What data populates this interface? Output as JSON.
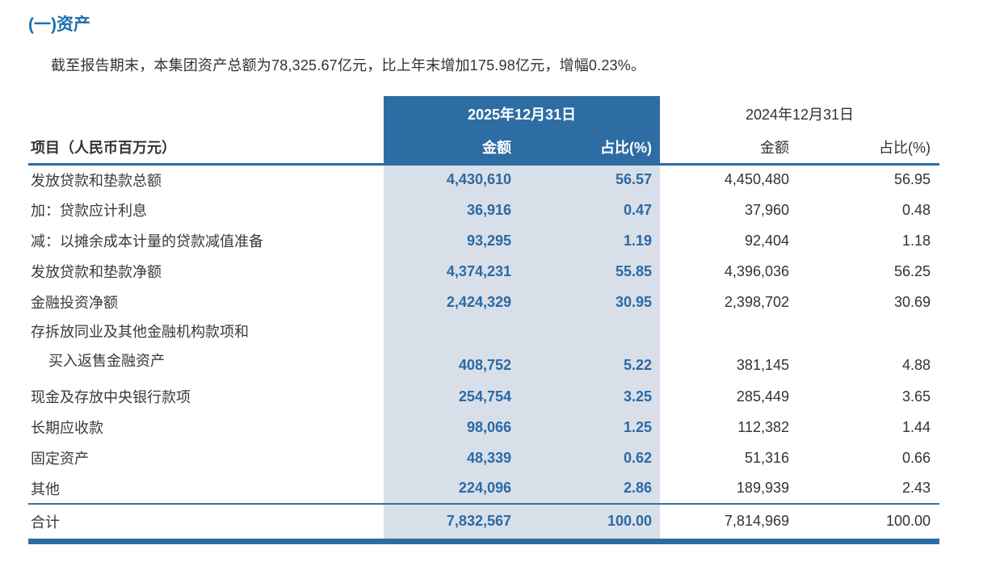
{
  "page": {
    "section_title": "(一)资产",
    "intro_paragraph": "截至报告期末，本集团资产总额为78,325.67亿元，比上年末增加175.98亿元，增幅0.23%。"
  },
  "table": {
    "item_header": "项目（人民币百万元）",
    "col_groups": [
      {
        "period": "2025年12月31日",
        "amount_label": "金额",
        "ratio_label": "占比(%)"
      },
      {
        "period": "2024年12月31日",
        "amount_label": "金额",
        "ratio_label": "占比(%)"
      }
    ],
    "rows": [
      {
        "item": "发放贷款和垫款总额",
        "amount_2025": "4,430,610",
        "ratio_2025": "56.57",
        "amount_2024": "4,450,480",
        "ratio_2024": "56.95"
      },
      {
        "item": "加：贷款应计利息",
        "amount_2025": "36,916",
        "ratio_2025": "0.47",
        "amount_2024": "37,960",
        "ratio_2024": "0.48"
      },
      {
        "item": "减：以摊余成本计量的贷款减值准备",
        "amount_2025": "93,295",
        "ratio_2025": "1.19",
        "amount_2024": "92,404",
        "ratio_2024": "1.18"
      },
      {
        "item": "发放贷款和垫款净额",
        "amount_2025": "4,374,231",
        "ratio_2025": "55.85",
        "amount_2024": "4,396,036",
        "ratio_2024": "56.25"
      },
      {
        "item": "金融投资净额",
        "amount_2025": "2,424,329",
        "ratio_2025": "30.95",
        "amount_2024": "2,398,702",
        "ratio_2024": "30.69"
      },
      {
        "item": "存拆放同业及其他金融机构款项和",
        "item2": "买入返售金融资产",
        "amount_2025": "408,752",
        "ratio_2025": "5.22",
        "amount_2024": "381,145",
        "ratio_2024": "4.88"
      },
      {
        "item": "现金及存放中央银行款项",
        "amount_2025": "254,754",
        "ratio_2025": "3.25",
        "amount_2024": "285,449",
        "ratio_2024": "3.65"
      },
      {
        "item": "长期应收款",
        "amount_2025": "98,066",
        "ratio_2025": "1.25",
        "amount_2024": "112,382",
        "ratio_2024": "1.44"
      },
      {
        "item": "固定资产",
        "amount_2025": "48,339",
        "ratio_2025": "0.62",
        "amount_2024": "51,316",
        "ratio_2024": "0.66"
      },
      {
        "item": "其他",
        "amount_2025": "224,096",
        "ratio_2025": "2.86",
        "amount_2024": "189,939",
        "ratio_2024": "2.43"
      }
    ],
    "total_row": {
      "item": "合计",
      "amount_2025": "7,832,567",
      "ratio_2025": "100.00",
      "amount_2024": "7,814,969",
      "ratio_2024": "100.00"
    }
  },
  "colors": {
    "accent_blue": "#2D6DA4",
    "title_blue": "#1D6FAE",
    "number_blue": "#2A6AA5",
    "highlight_band": "#D9DFE9",
    "body_text": "#333333"
  }
}
